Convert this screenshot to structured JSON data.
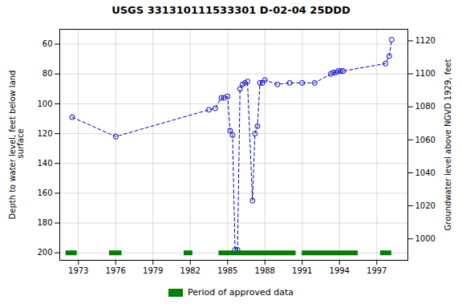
{
  "chart_data": {
    "type": "line",
    "title": "USGS 331310111533301 D-02-04 25DDD",
    "ylabel": "Depth to water level, feet below land\n surface",
    "y2label": "Groundwater level above NGVD 1929, feet",
    "x": [
      1972.5,
      1976.0,
      1983.5,
      1984.0,
      1984.5,
      1984.7,
      1985.0,
      1985.2,
      1985.4,
      1985.6,
      1985.8,
      1986.0,
      1986.2,
      1986.4,
      1986.6,
      1987.0,
      1987.2,
      1987.4,
      1987.6,
      1987.8,
      1988.0,
      1989.0,
      1990.0,
      1991.0,
      1992.0,
      1993.3,
      1993.5,
      1993.7,
      1993.9,
      1994.1,
      1994.3,
      1997.7,
      1998.0,
      1998.2
    ],
    "values": [
      109,
      122,
      104,
      103,
      96,
      96,
      95,
      118,
      121,
      198,
      198,
      90,
      87,
      86,
      85,
      165,
      120,
      115,
      86,
      86,
      84,
      87,
      86,
      86,
      86,
      80,
      79,
      79,
      78,
      78,
      78,
      73,
      68,
      57
    ],
    "color": "#0000CC",
    "marker": "circle",
    "line_style": "dashed",
    "xlim": [
      1971.5,
      1999.5
    ],
    "xticks": [
      1973,
      1976,
      1979,
      1982,
      1985,
      1988,
      1991,
      1994,
      1997
    ],
    "ylim": [
      205,
      50
    ],
    "yticks": [
      60,
      80,
      100,
      120,
      140,
      160,
      180,
      200
    ],
    "y2lim": [
      987,
      1127
    ],
    "y2ticks": [
      1120,
      1100,
      1080,
      1060,
      1040,
      1020,
      1000
    ],
    "grid": true,
    "legend": "bottom",
    "approved_periods": {
      "name": "Period of approved data",
      "color": "#008000",
      "y": 200,
      "ranges": [
        [
          1972.0,
          1972.9
        ],
        [
          1975.5,
          1976.5
        ],
        [
          1981.5,
          1982.2
        ],
        [
          1984.3,
          1990.5
        ],
        [
          1991.0,
          1995.5
        ],
        [
          1997.3,
          1998.2
        ]
      ]
    }
  }
}
